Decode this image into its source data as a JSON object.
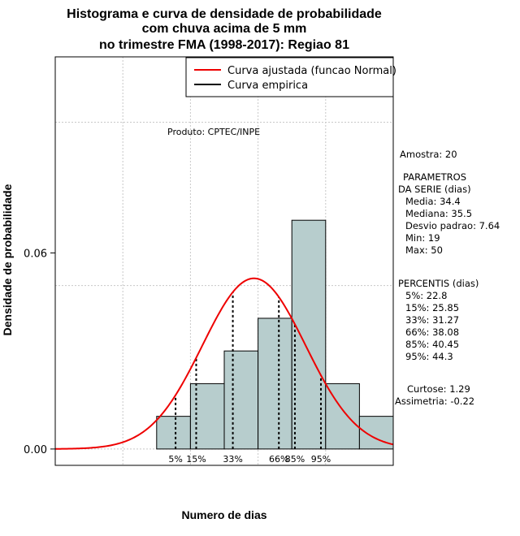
{
  "chart_data": {
    "type": "bar",
    "title_lines": [
      "Histograma e curva de densidade de probabilidade",
      "com chuva acima de 5 mm",
      "no trimestre FMA (1998-2017): Regiao 81"
    ],
    "xlabel": "Numero de dias",
    "ylabel": "Densidade de probabilidade",
    "xlim": [
      5,
      55
    ],
    "ylim": [
      -0.005,
      0.12
    ],
    "yticks": [
      {
        "value": 0.0,
        "label": "0.00"
      },
      {
        "value": 0.06,
        "label": "0.06"
      }
    ],
    "grid_x": [
      15,
      25,
      35,
      45,
      55
    ],
    "grid_y": [
      0.05,
      0.1
    ],
    "bins": [
      {
        "from": 20,
        "to": 25,
        "density": 0.01
      },
      {
        "from": 25,
        "to": 30,
        "density": 0.02
      },
      {
        "from": 30,
        "to": 35,
        "density": 0.03
      },
      {
        "from": 35,
        "to": 40,
        "density": 0.04
      },
      {
        "from": 40,
        "to": 45,
        "density": 0.07
      },
      {
        "from": 45,
        "to": 50,
        "density": 0.02
      },
      {
        "from": 50,
        "to": 55,
        "density": 0.01
      }
    ],
    "normal_curve": {
      "name": "Curva ajustada (funcao Normal)",
      "mean": 34.4,
      "sd": 7.64,
      "x_from": 5,
      "x_to": 55,
      "color": "#ee0000"
    },
    "percentile_lines": [
      {
        "label": "5%",
        "value": 22.8
      },
      {
        "label": "15%",
        "value": 25.85
      },
      {
        "label": "33%",
        "value": 31.27
      },
      {
        "label": "66%",
        "value": 38.08
      },
      {
        "label": "85%",
        "value": 40.45
      },
      {
        "label": "95%",
        "value": 44.3
      }
    ],
    "legend": {
      "placement": "top-right",
      "entries": [
        {
          "label": "Curva ajustada (funcao Normal)",
          "color": "#ee0000"
        },
        {
          "label": "Curva empirica",
          "color": "#000000"
        }
      ]
    },
    "bar_color": "#b7cdcd"
  },
  "product_label": "Produto: CPTEC/INPE",
  "side_text": {
    "sample": "Amostra: 20",
    "params_header_1": "PARAMETROS",
    "params_header_2": "DA SERIE (dias)",
    "params": [
      "Media: 34.4",
      "Mediana: 35.5",
      "Desvio padrao: 7.64",
      "Min: 19",
      "Max: 50"
    ],
    "percentile_header": "PERCENTIS (dias)",
    "percentiles": [
      "5%: 22.8",
      "15%: 25.85",
      "33%: 31.27",
      "66%: 38.08",
      "85%: 40.45",
      "95%: 44.3"
    ],
    "kurtosis": "Curtose: 1.29",
    "skewness": "Assimetria: -0.22"
  }
}
